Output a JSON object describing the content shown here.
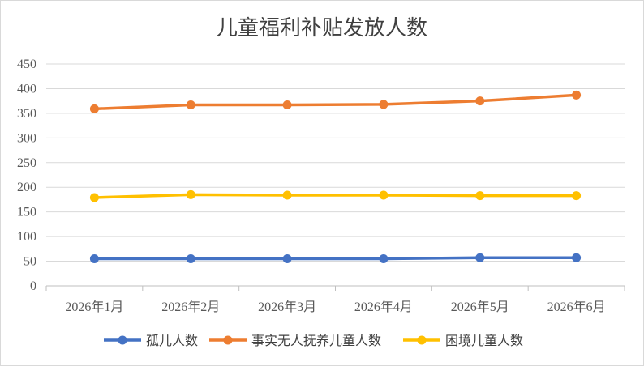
{
  "chart_data": {
    "type": "line",
    "title": "儿童福利补贴发放人数",
    "categories": [
      "2026年1月",
      "2026年2月",
      "2026年3月",
      "2026年4月",
      "2026年5月",
      "2026年6月"
    ],
    "ylim": [
      0,
      450
    ],
    "yticks": [
      0,
      50,
      100,
      150,
      200,
      250,
      300,
      350,
      400,
      450
    ],
    "grid": true,
    "legend_position": "bottom",
    "series": [
      {
        "name": "孤儿人数",
        "color": "#4472c4",
        "values": [
          55,
          55,
          55,
          55,
          57,
          57
        ]
      },
      {
        "name": "事实无人抚养儿童人数",
        "color": "#ed7d31",
        "values": [
          359,
          367,
          367,
          368,
          375,
          387
        ]
      },
      {
        "name": "困境儿童人数",
        "color": "#ffc000",
        "values": [
          179,
          185,
          184,
          184,
          183,
          183
        ]
      }
    ]
  }
}
